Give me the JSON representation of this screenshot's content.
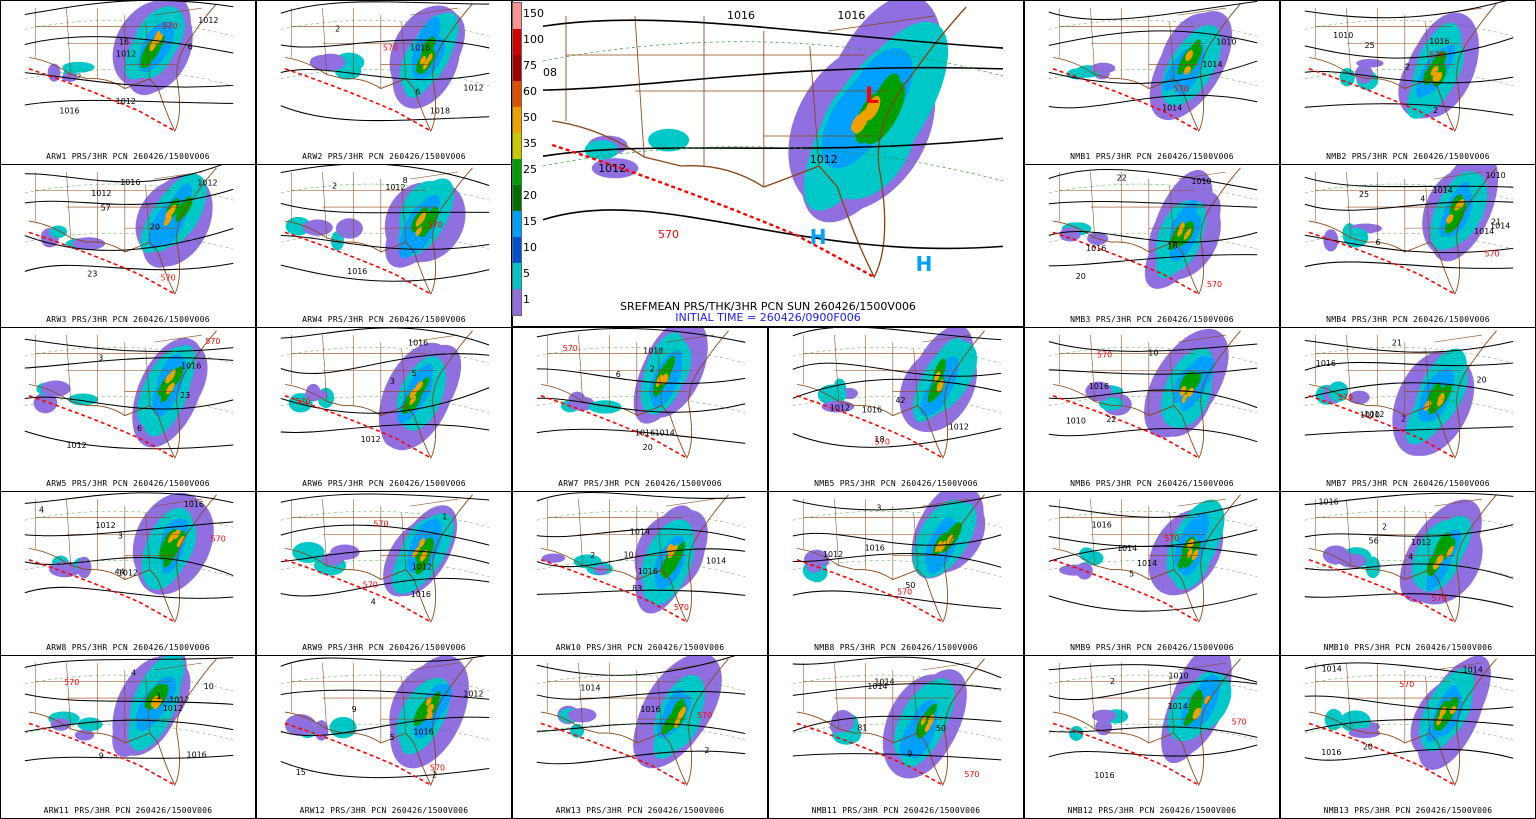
{
  "main_panel": {
    "title": "SREFMEAN PRS/THK/3HR PCN SUN 260426/1500V006",
    "initial_time": "INITIAL TIME = 260426/0900F006",
    "labels": [
      "1016",
      "1016",
      "1012",
      "1012",
      "570",
      "L",
      "H",
      "H",
      "08"
    ],
    "colors": {
      "low": "#ff0000",
      "high": "#00a0ff",
      "thickness": "#ff0000",
      "isobar": "#000000",
      "border": "#8b4513"
    }
  },
  "colorbar": {
    "levels": [
      "150",
      "100",
      "75",
      "60",
      "50",
      "35",
      "25",
      "20",
      "15",
      "10",
      "5",
      "1"
    ],
    "colors": [
      "#ff9090",
      "#d00000",
      "#a00000",
      "#e05000",
      "#f0a000",
      "#c8c800",
      "#00a000",
      "#007000",
      "#00a0ff",
      "#0050d0",
      "#00c8c8",
      "#9070e0"
    ]
  },
  "panels": [
    {
      "caption": "ARW1 PRS/3HR PCN 260426/1500V006",
      "labels": [
        "1016",
        "1012",
        "1012",
        "1012",
        "570",
        "2",
        "16",
        "6"
      ]
    },
    {
      "caption": "ARW2 PRS/3HR PCN 260426/1500V006",
      "labels": [
        "1012",
        "1016",
        "570",
        "1018",
        "6",
        "2"
      ]
    },
    {
      "caption": "NMB1 PRS/3HR PCN 260426/1500V006",
      "labels": [
        "1014",
        "1010",
        "1014",
        "570"
      ]
    },
    {
      "caption": "NMB2 PRS/3HR PCN 260426/1500V006",
      "labels": [
        "1016",
        "1010",
        "570",
        "2",
        "2",
        "25"
      ]
    },
    {
      "caption": "ARW3 PRS/3HR PCN 260426/1500V006",
      "labels": [
        "1016",
        "1012",
        "570",
        "57",
        "20",
        "23",
        "1012"
      ]
    },
    {
      "caption": "ARW4 PRS/3HR PCN 260426/1500V006",
      "labels": [
        "1016",
        "1012",
        "570",
        "2",
        "8"
      ]
    },
    {
      "caption": "NMB3 PRS/3HR PCN 260426/1500V006",
      "labels": [
        "1016",
        "1010",
        "570",
        "20",
        "18",
        "22"
      ]
    },
    {
      "caption": "NMB4 PRS/3HR PCN 260426/1500V006",
      "labels": [
        "1014",
        "1010",
        "1014",
        "570",
        "4",
        "6",
        "25",
        "21",
        "1014"
      ]
    },
    {
      "caption": "ARW5 PRS/3HR PCN 260426/1500V006",
      "labels": [
        "1016",
        "1012",
        "570",
        "23",
        "6",
        "3"
      ]
    },
    {
      "caption": "ARW6 PRS/3HR PCN 260426/1500V006",
      "labels": [
        "1016",
        "1012",
        "570",
        "5",
        "3"
      ]
    },
    {
      "caption": "ARW7 PRS/3HR PCN 260426/1500V006",
      "labels": [
        "1016",
        "1014",
        "570",
        "1018",
        "20",
        "6",
        "2"
      ]
    },
    {
      "caption": "NMB5 PRS/3HR PCN 260426/1500V006",
      "labels": [
        "1016",
        "1012",
        "1012",
        "570",
        "42",
        "18"
      ]
    },
    {
      "caption": "NMB6 PRS/3HR PCN 260426/1500V006",
      "labels": [
        "1016",
        "1010",
        "570",
        "22",
        "10"
      ]
    },
    {
      "caption": "NMB7 PRS/3HR PCN 260426/1500V006",
      "labels": [
        "1016",
        "1010",
        "1012",
        "570",
        "2",
        "21",
        "20"
      ]
    },
    {
      "caption": "ARW8 PRS/3HR PCN 260426/1500V006",
      "labels": [
        "1016",
        "1012",
        "1012",
        "570",
        "3",
        "44",
        "4"
      ]
    },
    {
      "caption": "ARW9 PRS/3HR PCN 260426/1500V006",
      "labels": [
        "1016",
        "1012",
        "570",
        "1",
        "4",
        "570"
      ]
    },
    {
      "caption": "ARW10 PRS/3HR PCN 260426/1500V006",
      "labels": [
        "1016",
        "1014",
        "1014",
        "570",
        "10",
        "83",
        "2"
      ]
    },
    {
      "caption": "NMB8 PRS/3HR PCN 260426/1500V006",
      "labels": [
        "1016",
        "1012",
        "570",
        "50",
        "3"
      ]
    },
    {
      "caption": "NMB9 PRS/3HR PCN 260426/1500V006",
      "labels": [
        "1016",
        "1014",
        "570",
        "1014",
        "5"
      ]
    },
    {
      "caption": "NMB10 PRS/3HR PCN 260426/1500V006",
      "labels": [
        "1016",
        "1012",
        "570",
        "56",
        "2",
        "4"
      ]
    },
    {
      "caption": "ARW11 PRS/3HR PCN 260426/1500V006",
      "labels": [
        "1016",
        "1012",
        "1012",
        "570",
        "9",
        "4",
        "1",
        "10"
      ]
    },
    {
      "caption": "ARW12 PRS/3HR PCN 260426/1500V006",
      "labels": [
        "1016",
        "1012",
        "570",
        "15",
        "9",
        "5",
        "2"
      ]
    },
    {
      "caption": "ARW13 PRS/3HR PCN 260426/1500V006",
      "labels": [
        "1016",
        "1014",
        "570",
        "2"
      ]
    },
    {
      "caption": "NMB11 PRS/3HR PCN 260426/1500V006",
      "labels": [
        "1014",
        "1014",
        "570",
        "50",
        "81",
        "9"
      ]
    },
    {
      "caption": "NMB12 PRS/3HR PCN 260426/1500V006",
      "labels": [
        "1016",
        "1010",
        "570",
        "1014",
        "2"
      ]
    },
    {
      "caption": "NMB13 PRS/3HR PCN 260426/1500V006",
      "labels": [
        "1016",
        "1014",
        "1014",
        "570",
        "20"
      ]
    }
  ]
}
